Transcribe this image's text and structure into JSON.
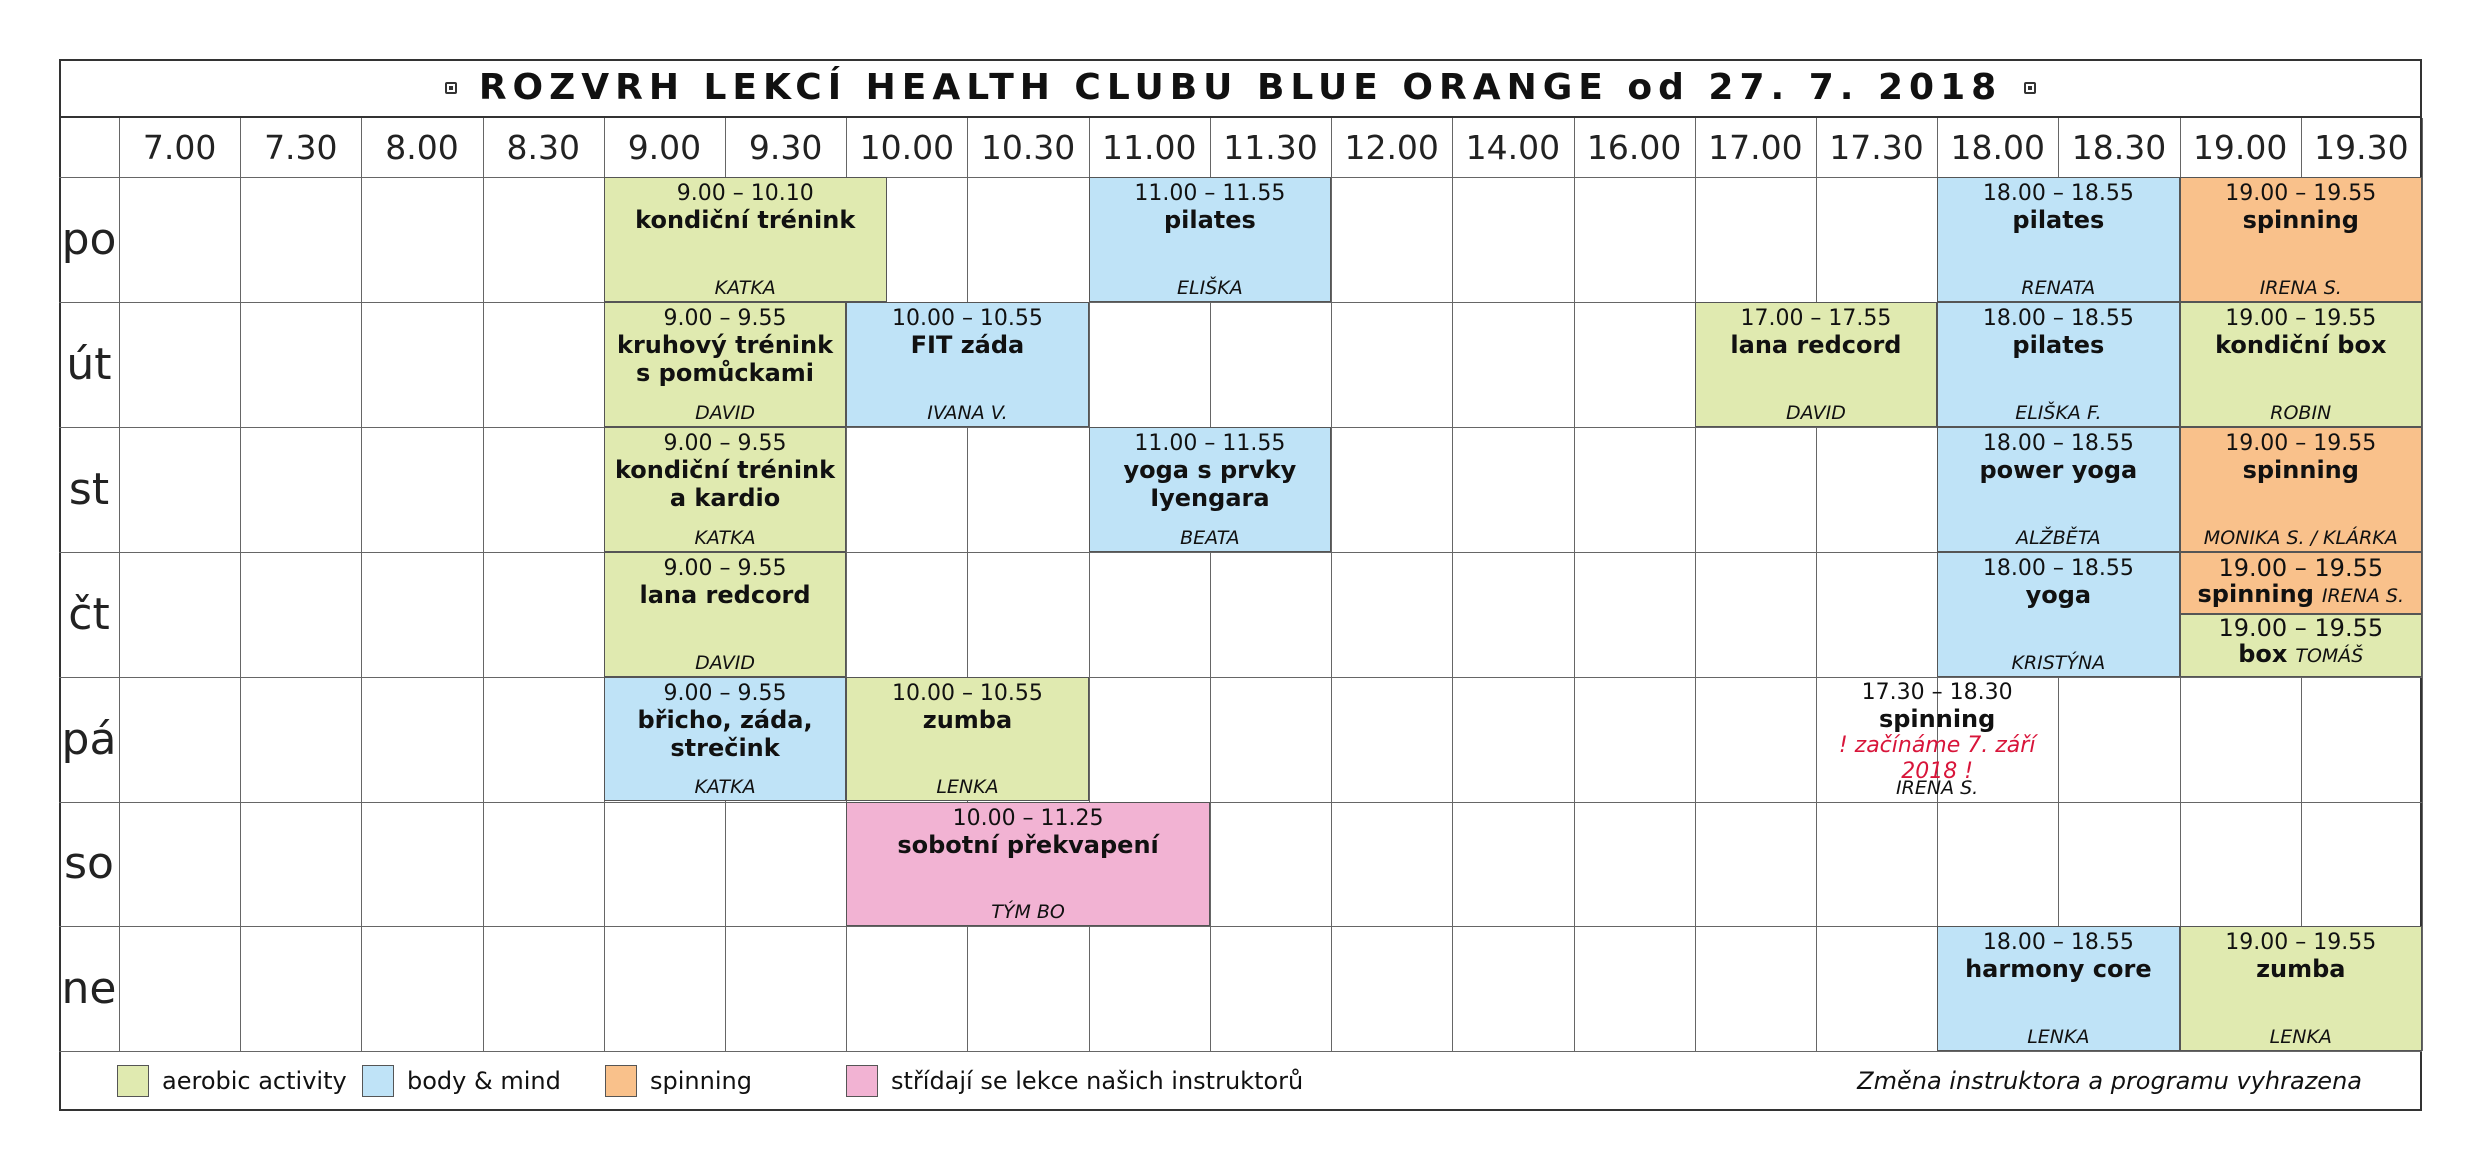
{
  "title": "ROZVRH LEKCÍ HEALTH CLUBU BLUE ORANGE od 27. 7. 2018",
  "times": [
    "7.00",
    "7.30",
    "8.00",
    "8.30",
    "9.00",
    "9.30",
    "10.00",
    "10.30",
    "11.00",
    "11.30",
    "12.00",
    "14.00",
    "16.00",
    "17.00",
    "17.30",
    "18.00",
    "18.30",
    "19.00",
    "19.30"
  ],
  "days": [
    "po",
    "út",
    "st",
    "čt",
    "pá",
    "so",
    "ne"
  ],
  "colors": {
    "aerobic": "#e0eab0",
    "body": "#bfe3f7",
    "spin": "#f9c18b",
    "alt": "#f2b3d3",
    "note": "#d8153a"
  },
  "lessons": [
    {
      "day": "po",
      "type": "aerobic",
      "time": "9.00 – 10.10",
      "name": [
        "kondiční trénink"
      ],
      "instructor": "KATKA"
    },
    {
      "day": "po",
      "type": "body",
      "time": "11.00 – 11.55",
      "name": [
        "pilates"
      ],
      "instructor": "ELIŠKA"
    },
    {
      "day": "po",
      "type": "body",
      "time": "18.00 – 18.55",
      "name": [
        "pilates"
      ],
      "instructor": "RENATA"
    },
    {
      "day": "po",
      "type": "spin",
      "time": "19.00 – 19.55",
      "name": [
        "spinning"
      ],
      "instructor": "IRENA S."
    },
    {
      "day": "út",
      "type": "aerobic",
      "time": "9.00 – 9.55",
      "name": [
        "kruhový trénink",
        "s pomůckami"
      ],
      "instructor": "DAVID"
    },
    {
      "day": "út",
      "type": "body",
      "time": "10.00 – 10.55",
      "name": [
        "FIT záda"
      ],
      "instructor": "IVANA V."
    },
    {
      "day": "út",
      "type": "aerobic",
      "time": "17.00 – 17.55",
      "name": [
        "lana redcord"
      ],
      "instructor": "DAVID"
    },
    {
      "day": "út",
      "type": "body",
      "time": "18.00 – 18.55",
      "name": [
        "pilates"
      ],
      "instructor": "ELIŠKA F."
    },
    {
      "day": "út",
      "type": "aerobic",
      "time": "19.00 – 19.55",
      "name": [
        "kondiční box"
      ],
      "instructor": "ROBIN"
    },
    {
      "day": "st",
      "type": "aerobic",
      "time": "9.00 – 9.55",
      "name": [
        "kondiční trénink",
        "a kardio"
      ],
      "instructor": "KATKA"
    },
    {
      "day": "st",
      "type": "body",
      "time": "11.00 – 11.55",
      "name": [
        "yoga s prvky",
        "Iyengara"
      ],
      "instructor": "BEATA"
    },
    {
      "day": "st",
      "type": "body",
      "time": "18.00 – 18.55",
      "name": [
        "power yoga"
      ],
      "instructor": "ALŽBĚTA"
    },
    {
      "day": "st",
      "type": "spin",
      "time": "19.00 – 19.55",
      "name": [
        "spinning"
      ],
      "instructor": "MONIKA S. / KLÁRKA"
    },
    {
      "day": "čt",
      "type": "aerobic",
      "time": "9.00 – 9.55",
      "name": [
        "lana redcord"
      ],
      "instructor": "DAVID"
    },
    {
      "day": "čt",
      "type": "body",
      "time": "18.00 – 18.55",
      "name": [
        "yoga"
      ],
      "instructor": "KRISTÝNA"
    },
    {
      "day": "čt",
      "type": "spin",
      "time": "19.00 – 19.55",
      "name": [
        "spinning"
      ],
      "instructor": "IRENA S."
    },
    {
      "day": "čt",
      "type": "aerobic",
      "time": "19.00 – 19.55",
      "name": [
        "box"
      ],
      "instructor": "TOMÁŠ"
    },
    {
      "day": "pá",
      "type": "body",
      "time": "9.00 – 9.55",
      "name": [
        "břicho, záda,",
        "strečink"
      ],
      "instructor": "KATKA"
    },
    {
      "day": "pá",
      "type": "aerobic",
      "time": "10.00 – 10.55",
      "name": [
        "zumba"
      ],
      "instructor": "LENKA"
    },
    {
      "day": "pá",
      "type": "plain",
      "time": "17.30 – 18.30",
      "name": [
        "spinning"
      ],
      "note": "! začínáme 7. září 2018 !",
      "instructor": "IRENA S."
    },
    {
      "day": "so",
      "type": "alt",
      "time": "10.00 – 11.25",
      "name": [
        "sobotní překvapení"
      ],
      "instructor": "TÝM BO"
    },
    {
      "day": "ne",
      "type": "body",
      "time": "18.00 – 18.55",
      "name": [
        "harmony core"
      ],
      "instructor": "LENKA"
    },
    {
      "day": "ne",
      "type": "aerobic",
      "time": "19.00 – 19.55",
      "name": [
        "zumba"
      ],
      "instructor": "LENKA"
    }
  ],
  "legend": [
    {
      "type": "aerobic",
      "label": "aerobic activity"
    },
    {
      "type": "body",
      "label": "body & mind"
    },
    {
      "type": "spin",
      "label": "spinning"
    },
    {
      "type": "alt",
      "label": "střídají se lekce našich instruktorů"
    }
  ],
  "footer_note": "Změna instruktora a programu vyhrazena"
}
